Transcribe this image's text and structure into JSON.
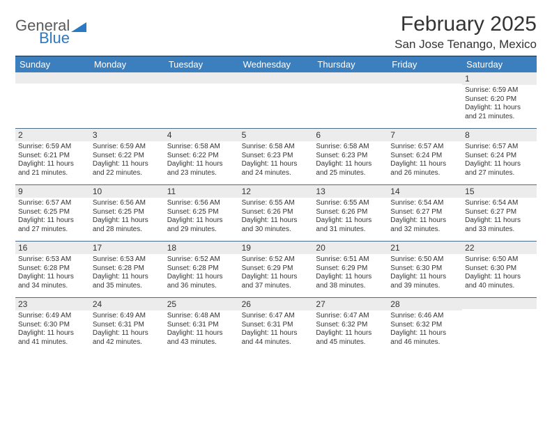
{
  "brand": {
    "general": "General",
    "blue": "Blue",
    "tri_color": "#2b79c2"
  },
  "title": "February 2025",
  "location": "San Jose Tenango, Mexico",
  "header_bg": "#3b7fbf",
  "header_text": "#ffffff",
  "daynum_bg": "#ececec",
  "rule_color": "#4a6a8a",
  "days_of_week": [
    "Sunday",
    "Monday",
    "Tuesday",
    "Wednesday",
    "Thursday",
    "Friday",
    "Saturday"
  ],
  "weeks": [
    [
      {
        "n": ""
      },
      {
        "n": ""
      },
      {
        "n": ""
      },
      {
        "n": ""
      },
      {
        "n": ""
      },
      {
        "n": ""
      },
      {
        "n": "1",
        "sr": "Sunrise: 6:59 AM",
        "ss": "Sunset: 6:20 PM",
        "d1": "Daylight: 11 hours",
        "d2": "and 21 minutes."
      }
    ],
    [
      {
        "n": "2",
        "sr": "Sunrise: 6:59 AM",
        "ss": "Sunset: 6:21 PM",
        "d1": "Daylight: 11 hours",
        "d2": "and 21 minutes."
      },
      {
        "n": "3",
        "sr": "Sunrise: 6:59 AM",
        "ss": "Sunset: 6:22 PM",
        "d1": "Daylight: 11 hours",
        "d2": "and 22 minutes."
      },
      {
        "n": "4",
        "sr": "Sunrise: 6:58 AM",
        "ss": "Sunset: 6:22 PM",
        "d1": "Daylight: 11 hours",
        "d2": "and 23 minutes."
      },
      {
        "n": "5",
        "sr": "Sunrise: 6:58 AM",
        "ss": "Sunset: 6:23 PM",
        "d1": "Daylight: 11 hours",
        "d2": "and 24 minutes."
      },
      {
        "n": "6",
        "sr": "Sunrise: 6:58 AM",
        "ss": "Sunset: 6:23 PM",
        "d1": "Daylight: 11 hours",
        "d2": "and 25 minutes."
      },
      {
        "n": "7",
        "sr": "Sunrise: 6:57 AM",
        "ss": "Sunset: 6:24 PM",
        "d1": "Daylight: 11 hours",
        "d2": "and 26 minutes."
      },
      {
        "n": "8",
        "sr": "Sunrise: 6:57 AM",
        "ss": "Sunset: 6:24 PM",
        "d1": "Daylight: 11 hours",
        "d2": "and 27 minutes."
      }
    ],
    [
      {
        "n": "9",
        "sr": "Sunrise: 6:57 AM",
        "ss": "Sunset: 6:25 PM",
        "d1": "Daylight: 11 hours",
        "d2": "and 27 minutes."
      },
      {
        "n": "10",
        "sr": "Sunrise: 6:56 AM",
        "ss": "Sunset: 6:25 PM",
        "d1": "Daylight: 11 hours",
        "d2": "and 28 minutes."
      },
      {
        "n": "11",
        "sr": "Sunrise: 6:56 AM",
        "ss": "Sunset: 6:25 PM",
        "d1": "Daylight: 11 hours",
        "d2": "and 29 minutes."
      },
      {
        "n": "12",
        "sr": "Sunrise: 6:55 AM",
        "ss": "Sunset: 6:26 PM",
        "d1": "Daylight: 11 hours",
        "d2": "and 30 minutes."
      },
      {
        "n": "13",
        "sr": "Sunrise: 6:55 AM",
        "ss": "Sunset: 6:26 PM",
        "d1": "Daylight: 11 hours",
        "d2": "and 31 minutes."
      },
      {
        "n": "14",
        "sr": "Sunrise: 6:54 AM",
        "ss": "Sunset: 6:27 PM",
        "d1": "Daylight: 11 hours",
        "d2": "and 32 minutes."
      },
      {
        "n": "15",
        "sr": "Sunrise: 6:54 AM",
        "ss": "Sunset: 6:27 PM",
        "d1": "Daylight: 11 hours",
        "d2": "and 33 minutes."
      }
    ],
    [
      {
        "n": "16",
        "sr": "Sunrise: 6:53 AM",
        "ss": "Sunset: 6:28 PM",
        "d1": "Daylight: 11 hours",
        "d2": "and 34 minutes."
      },
      {
        "n": "17",
        "sr": "Sunrise: 6:53 AM",
        "ss": "Sunset: 6:28 PM",
        "d1": "Daylight: 11 hours",
        "d2": "and 35 minutes."
      },
      {
        "n": "18",
        "sr": "Sunrise: 6:52 AM",
        "ss": "Sunset: 6:28 PM",
        "d1": "Daylight: 11 hours",
        "d2": "and 36 minutes."
      },
      {
        "n": "19",
        "sr": "Sunrise: 6:52 AM",
        "ss": "Sunset: 6:29 PM",
        "d1": "Daylight: 11 hours",
        "d2": "and 37 minutes."
      },
      {
        "n": "20",
        "sr": "Sunrise: 6:51 AM",
        "ss": "Sunset: 6:29 PM",
        "d1": "Daylight: 11 hours",
        "d2": "and 38 minutes."
      },
      {
        "n": "21",
        "sr": "Sunrise: 6:50 AM",
        "ss": "Sunset: 6:30 PM",
        "d1": "Daylight: 11 hours",
        "d2": "and 39 minutes."
      },
      {
        "n": "22",
        "sr": "Sunrise: 6:50 AM",
        "ss": "Sunset: 6:30 PM",
        "d1": "Daylight: 11 hours",
        "d2": "and 40 minutes."
      }
    ],
    [
      {
        "n": "23",
        "sr": "Sunrise: 6:49 AM",
        "ss": "Sunset: 6:30 PM",
        "d1": "Daylight: 11 hours",
        "d2": "and 41 minutes."
      },
      {
        "n": "24",
        "sr": "Sunrise: 6:49 AM",
        "ss": "Sunset: 6:31 PM",
        "d1": "Daylight: 11 hours",
        "d2": "and 42 minutes."
      },
      {
        "n": "25",
        "sr": "Sunrise: 6:48 AM",
        "ss": "Sunset: 6:31 PM",
        "d1": "Daylight: 11 hours",
        "d2": "and 43 minutes."
      },
      {
        "n": "26",
        "sr": "Sunrise: 6:47 AM",
        "ss": "Sunset: 6:31 PM",
        "d1": "Daylight: 11 hours",
        "d2": "and 44 minutes."
      },
      {
        "n": "27",
        "sr": "Sunrise: 6:47 AM",
        "ss": "Sunset: 6:32 PM",
        "d1": "Daylight: 11 hours",
        "d2": "and 45 minutes."
      },
      {
        "n": "28",
        "sr": "Sunrise: 6:46 AM",
        "ss": "Sunset: 6:32 PM",
        "d1": "Daylight: 11 hours",
        "d2": "and 46 minutes."
      },
      {
        "n": ""
      }
    ]
  ]
}
